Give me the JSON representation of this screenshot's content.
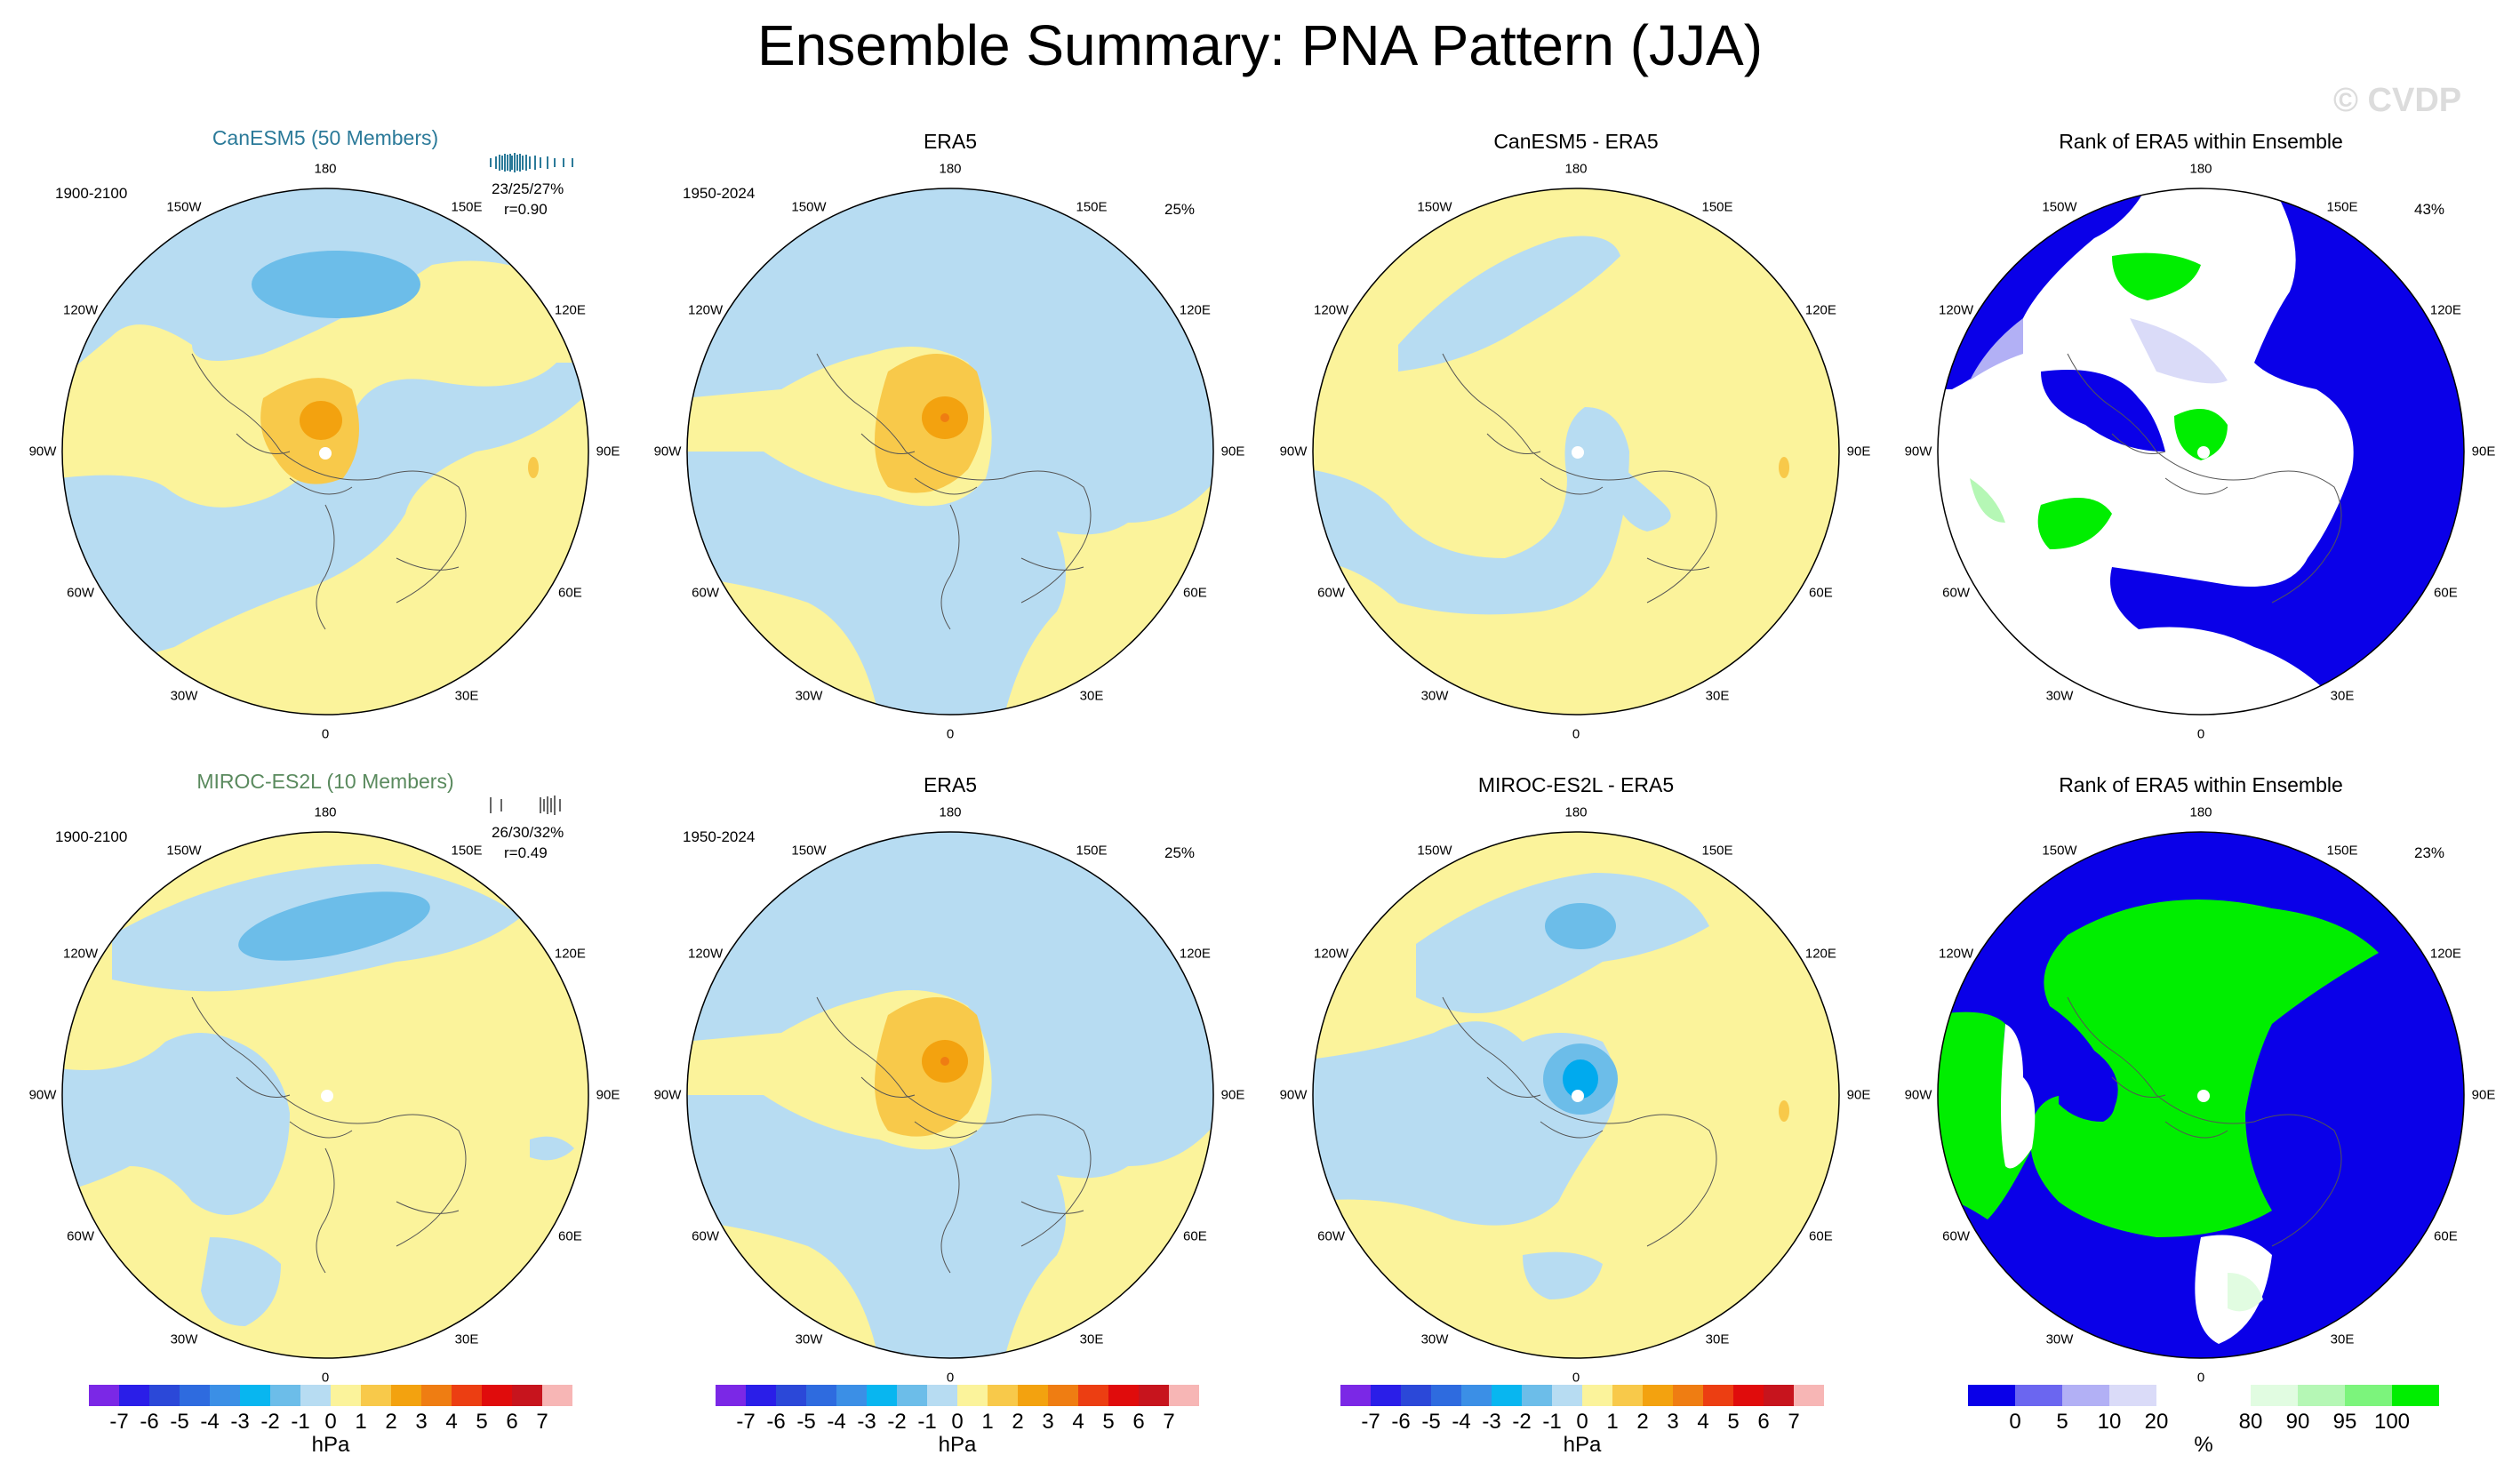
{
  "figure_title": "Ensemble Summary: PNA Pattern (JJA)",
  "watermark": "© CVDP",
  "colors": {
    "blue_light": "#b7dcf2",
    "blue_mid": "#6cbde9",
    "blue_strong": "#00aaee",
    "yellow": "#fbf39b",
    "orange_light": "#f8c94a",
    "orange": "#f3a20f",
    "orange_dark": "#ef7d12",
    "rank_blue": "#0a00e8",
    "rank_green": "#00ee00",
    "pna_cmap": [
      "#7b28e6",
      "#2a1ee8",
      "#2b48d8",
      "#2e6bdf",
      "#3b8fe6",
      "#08b6f0",
      "#6cbde9",
      "#b7dcf2",
      "#fbf39b",
      "#f8c94a",
      "#f3a20f",
      "#ef7d12",
      "#ec3e12",
      "#e00c0c",
      "#c7141d",
      "#f7b6b5"
    ],
    "rank_cmap": [
      "#0a00e8",
      "#6b66f0",
      "#b2b0f5",
      "#dadbf8",
      "#ffffff",
      "#ffffff",
      "#e1fce1",
      "#b5f7b5",
      "#7cf47c",
      "#00ee00"
    ]
  },
  "colorbar": {
    "pna_ticks": [
      "-7",
      "-6",
      "-5",
      "-4",
      "-3",
      "-2",
      "-1",
      "0",
      "1",
      "2",
      "3",
      "4",
      "5",
      "6",
      "7"
    ],
    "pna_unit": "hPa",
    "rank_ticks": [
      "0",
      "5",
      "10",
      "20",
      "80",
      "90",
      "95",
      "100"
    ],
    "rank_unit": "%"
  },
  "lon_labels": [
    "180",
    "150E",
    "120E",
    "90E",
    "60E",
    "30E",
    "0",
    "30W",
    "60W",
    "90W",
    "120W",
    "150W"
  ],
  "rows": [
    {
      "model_title": "CanESM5 (50 Members)",
      "model_color": "#2b7a99",
      "model_period": "1900-2100",
      "stats": "23/25/27%",
      "corr": "r=0.90",
      "era_title": "ERA5",
      "era_period": "1950-2024",
      "era_pct": "25%",
      "diff_title": "CanESM5 - ERA5",
      "rank_title": "Rank of ERA5 within Ensemble",
      "rank_pct": "43%",
      "strip_color": "#2b7a99"
    },
    {
      "model_title": "MIROC-ES2L (10 Members)",
      "model_color": "#5a8a5e",
      "model_period": "1900-2100",
      "stats": "26/30/32%",
      "corr": "r=0.49",
      "era_title": "ERA5",
      "era_period": "1950-2024",
      "era_pct": "25%",
      "diff_title": "MIROC-ES2L - ERA5",
      "rank_title": "Rank of ERA5 within Ensemble",
      "rank_pct": "23%",
      "strip_color": "#666666"
    }
  ]
}
